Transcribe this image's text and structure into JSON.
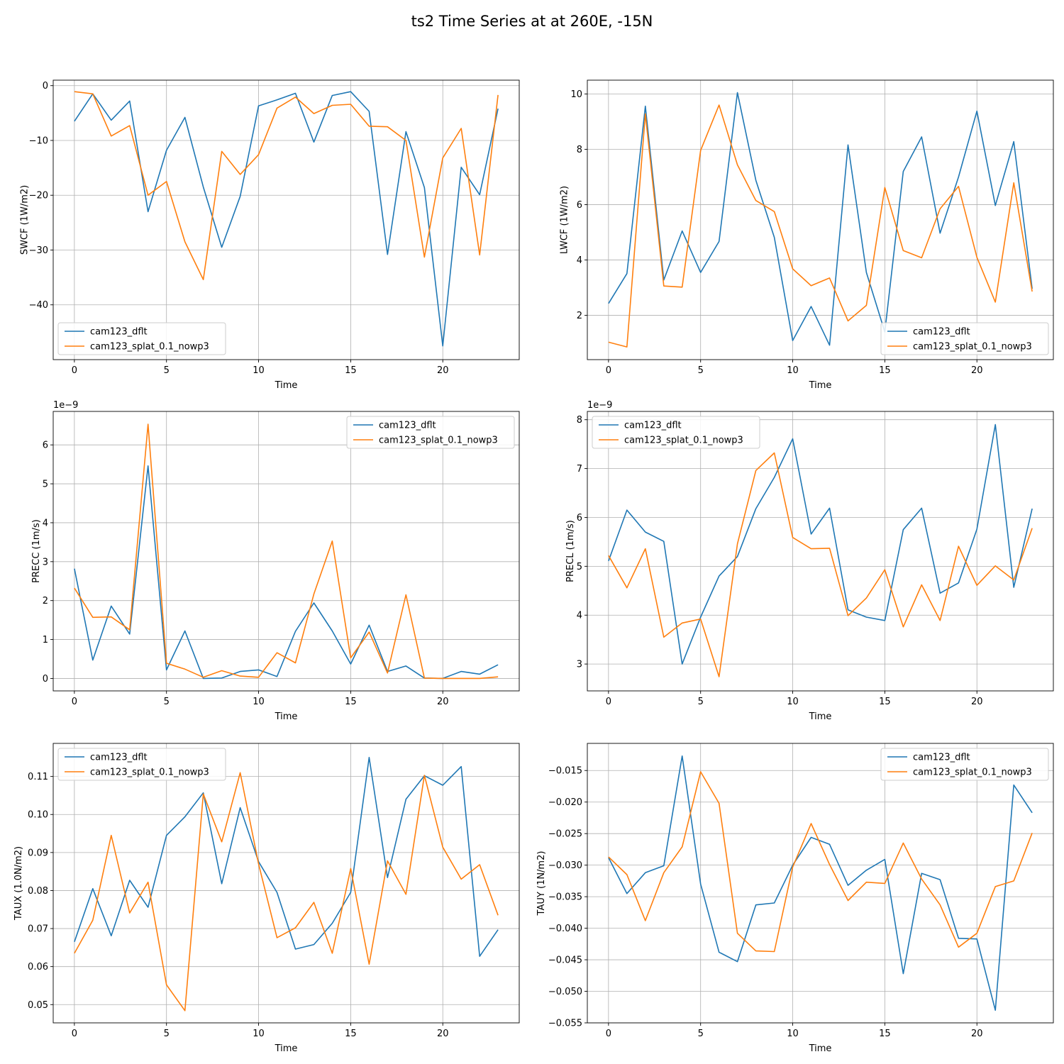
{
  "figure": {
    "title": "ts2 Time Series at at 260E, -15N"
  },
  "chart_data": [
    {
      "type": "line",
      "xlabel": "Time",
      "ylabel": "SWCF (1W/m2)",
      "offset": "",
      "xlim": [
        -1.15,
        24.15
      ],
      "ylim": [
        -50.0,
        1.0
      ],
      "xticks": [
        0,
        5,
        10,
        15,
        20
      ],
      "xtick_labels": [
        "0",
        "5",
        "10",
        "15",
        "20"
      ],
      "yticks": [
        -40,
        -30,
        -20,
        -10,
        0
      ],
      "ytick_labels": [
        "−40",
        "−30",
        "−20",
        "−10",
        "0"
      ],
      "grid": true,
      "legend": "lower left",
      "x": [
        0,
        1,
        2,
        3,
        4,
        5,
        6,
        7,
        8,
        9,
        10,
        11,
        12,
        13,
        14,
        15,
        16,
        17,
        18,
        19,
        20,
        21,
        22,
        23
      ],
      "series": [
        {
          "name": "cam123_dflt",
          "color": "#1f77b4",
          "values": [
            -6.5,
            -1.5,
            -6.3,
            -2.8,
            -23.0,
            -11.8,
            -5.8,
            -18.5,
            -29.5,
            -20.2,
            -3.7,
            -2.6,
            -1.4,
            -10.3,
            -1.8,
            -1.1,
            -4.7,
            -30.8,
            -8.4,
            -18.6,
            -47.5,
            -14.9,
            -19.9,
            -4.2
          ]
        },
        {
          "name": "cam123_splat_0.1_nowp3",
          "color": "#ff7f0e",
          "values": [
            -1.1,
            -1.5,
            -9.2,
            -7.3,
            -20.0,
            -17.5,
            -28.5,
            -35.4,
            -12.0,
            -16.2,
            -12.6,
            -4.1,
            -2.1,
            -5.1,
            -3.6,
            -3.4,
            -7.4,
            -7.5,
            -10.0,
            -31.3,
            -13.2,
            -7.8,
            -30.9,
            -1.7
          ]
        }
      ]
    },
    {
      "type": "line",
      "xlabel": "Time",
      "ylabel": "LWCF (1W/m2)",
      "offset": "",
      "xlim": [
        -1.15,
        24.15
      ],
      "ylim": [
        0.4,
        10.5
      ],
      "xticks": [
        0,
        5,
        10,
        15,
        20
      ],
      "xtick_labels": [
        "0",
        "5",
        "10",
        "15",
        "20"
      ],
      "yticks": [
        2,
        4,
        6,
        8,
        10
      ],
      "ytick_labels": [
        "2",
        "4",
        "6",
        "8",
        "10"
      ],
      "grid": true,
      "legend": "lower right",
      "x": [
        0,
        1,
        2,
        3,
        4,
        5,
        6,
        7,
        8,
        9,
        10,
        11,
        12,
        13,
        14,
        15,
        16,
        17,
        18,
        19,
        20,
        21,
        22,
        23
      ],
      "series": [
        {
          "name": "cam123_dflt",
          "color": "#1f77b4",
          "values": [
            2.43,
            3.51,
            9.56,
            3.28,
            5.05,
            3.55,
            4.67,
            10.05,
            6.88,
            4.82,
            1.09,
            2.32,
            0.92,
            8.16,
            3.55,
            1.4,
            7.2,
            8.45,
            4.97,
            7.0,
            9.38,
            5.97,
            8.28,
            2.96
          ]
        },
        {
          "name": "cam123_splat_0.1_nowp3",
          "color": "#ff7f0e",
          "values": [
            1.03,
            0.86,
            9.28,
            3.06,
            3.02,
            7.96,
            9.6,
            7.44,
            6.15,
            5.75,
            3.68,
            3.07,
            3.35,
            1.8,
            2.36,
            6.62,
            4.34,
            4.08,
            5.85,
            6.66,
            4.1,
            2.48,
            6.79,
            2.86
          ]
        }
      ]
    },
    {
      "type": "line",
      "xlabel": "Time",
      "ylabel": "PRECC (1m/s)",
      "offset": "1e−9",
      "xlim": [
        -1.15,
        24.15
      ],
      "ylim": [
        -0.32,
        6.86
      ],
      "xticks": [
        0,
        5,
        10,
        15,
        20
      ],
      "xtick_labels": [
        "0",
        "5",
        "10",
        "15",
        "20"
      ],
      "yticks": [
        0,
        1,
        2,
        3,
        4,
        5,
        6
      ],
      "ytick_labels": [
        "0",
        "1",
        "2",
        "3",
        "4",
        "5",
        "6"
      ],
      "grid": true,
      "legend": "upper right",
      "x": [
        0,
        1,
        2,
        3,
        4,
        5,
        6,
        7,
        8,
        9,
        10,
        11,
        12,
        13,
        14,
        15,
        16,
        17,
        18,
        19,
        20,
        21,
        22,
        23
      ],
      "series": [
        {
          "name": "cam123_dflt",
          "color": "#1f77b4",
          "values": [
            2.82,
            0.47,
            1.86,
            1.14,
            5.46,
            0.22,
            1.22,
            0.0,
            0.01,
            0.18,
            0.22,
            0.05,
            1.21,
            1.94,
            1.22,
            0.37,
            1.37,
            0.18,
            0.32,
            0.01,
            0.0,
            0.18,
            0.11,
            0.35
          ]
        },
        {
          "name": "cam123_splat_0.1_nowp3",
          "color": "#ff7f0e",
          "values": [
            2.32,
            1.57,
            1.58,
            1.25,
            6.53,
            0.39,
            0.24,
            0.03,
            0.2,
            0.06,
            0.03,
            0.66,
            0.4,
            2.17,
            3.53,
            0.53,
            1.19,
            0.14,
            2.15,
            0.01,
            0.0,
            0.0,
            0.0,
            0.04
          ]
        }
      ]
    },
    {
      "type": "line",
      "xlabel": "Time",
      "ylabel": "PRECL (1m/s)",
      "offset": "1e−9",
      "xlim": [
        -1.15,
        24.15
      ],
      "ylim": [
        2.45,
        8.17
      ],
      "xticks": [
        0,
        5,
        10,
        15,
        20
      ],
      "xtick_labels": [
        "0",
        "5",
        "10",
        "15",
        "20"
      ],
      "yticks": [
        3,
        4,
        5,
        6,
        7,
        8
      ],
      "ytick_labels": [
        "3",
        "4",
        "5",
        "6",
        "7",
        "8"
      ],
      "grid": true,
      "legend": "upper left",
      "x": [
        0,
        1,
        2,
        3,
        4,
        5,
        6,
        7,
        8,
        9,
        10,
        11,
        12,
        13,
        14,
        15,
        16,
        17,
        18,
        19,
        20,
        21,
        22,
        23
      ],
      "series": [
        {
          "name": "cam123_dflt",
          "color": "#1f77b4",
          "values": [
            5.11,
            6.15,
            5.7,
            5.51,
            3.0,
            3.96,
            4.8,
            5.2,
            6.18,
            6.82,
            7.61,
            5.66,
            6.19,
            4.11,
            3.96,
            3.89,
            5.75,
            6.19,
            4.45,
            4.66,
            5.76,
            7.9,
            4.57,
            6.18
          ]
        },
        {
          "name": "cam123_splat_0.1_nowp3",
          "color": "#ff7f0e",
          "values": [
            5.22,
            4.56,
            5.36,
            3.55,
            3.84,
            3.92,
            2.74,
            5.46,
            6.96,
            7.32,
            5.59,
            5.36,
            5.37,
            3.99,
            4.35,
            4.93,
            3.76,
            4.62,
            3.89,
            5.41,
            4.61,
            5.01,
            4.72,
            5.78
          ]
        }
      ]
    },
    {
      "type": "line",
      "xlabel": "Time",
      "ylabel": "TAUX (1.0N/m2)",
      "offset": "",
      "xlim": [
        -1.15,
        24.15
      ],
      "ylim": [
        0.0452,
        0.1187
      ],
      "xticks": [
        0,
        5,
        10,
        15,
        20
      ],
      "xtick_labels": [
        "0",
        "5",
        "10",
        "15",
        "20"
      ],
      "yticks": [
        0.05,
        0.06,
        0.07,
        0.08,
        0.09,
        0.1,
        0.11
      ],
      "ytick_labels": [
        "0.05",
        "0.06",
        "0.07",
        "0.08",
        "0.09",
        "0.10",
        "0.11"
      ],
      "grid": true,
      "legend": "upper left",
      "x": [
        0,
        1,
        2,
        3,
        4,
        5,
        6,
        7,
        8,
        9,
        10,
        11,
        12,
        13,
        14,
        15,
        16,
        17,
        18,
        19,
        20,
        21,
        22,
        23
      ],
      "series": [
        {
          "name": "cam123_dflt",
          "color": "#1f77b4",
          "values": [
            0.0665,
            0.0805,
            0.0681,
            0.0827,
            0.0756,
            0.0945,
            0.0994,
            0.1057,
            0.0818,
            0.1018,
            0.0876,
            0.0795,
            0.0646,
            0.0658,
            0.0714,
            0.0795,
            0.115,
            0.0834,
            0.104,
            0.1102,
            0.1077,
            0.1126,
            0.0627,
            0.0697
          ]
        },
        {
          "name": "cam123_splat_0.1_nowp3",
          "color": "#ff7f0e",
          "values": [
            0.0635,
            0.0722,
            0.0945,
            0.0741,
            0.0822,
            0.0552,
            0.0484,
            0.1054,
            0.0928,
            0.111,
            0.087,
            0.0676,
            0.0702,
            0.0769,
            0.0635,
            0.0858,
            0.0606,
            0.0878,
            0.079,
            0.1103,
            0.0914,
            0.083,
            0.0868,
            0.0735
          ]
        }
      ]
    },
    {
      "type": "line",
      "xlabel": "Time",
      "ylabel": "TAUY (1N/m2)",
      "offset": "",
      "xlim": [
        -1.15,
        24.15
      ],
      "ylim": [
        -0.055,
        -0.0107
      ],
      "xticks": [
        0,
        5,
        10,
        15,
        20
      ],
      "xtick_labels": [
        "0",
        "5",
        "10",
        "15",
        "20"
      ],
      "yticks": [
        -0.055,
        -0.05,
        -0.045,
        -0.04,
        -0.035,
        -0.03,
        -0.025,
        -0.02,
        -0.015
      ],
      "ytick_labels": [
        "−0.055",
        "−0.050",
        "−0.045",
        "−0.040",
        "−0.035",
        "−0.030",
        "−0.025",
        "−0.020",
        "−0.015"
      ],
      "grid": true,
      "legend": "upper right",
      "x": [
        0,
        1,
        2,
        3,
        4,
        5,
        6,
        7,
        8,
        9,
        10,
        11,
        12,
        13,
        14,
        15,
        16,
        17,
        18,
        19,
        20,
        21,
        22,
        23
      ],
      "series": [
        {
          "name": "cam123_dflt",
          "color": "#1f77b4",
          "values": [
            -0.0288,
            -0.0345,
            -0.0312,
            -0.0301,
            -0.0127,
            -0.033,
            -0.0438,
            -0.0453,
            -0.0363,
            -0.036,
            -0.03,
            -0.0256,
            -0.0267,
            -0.0332,
            -0.0308,
            -0.0291,
            -0.0472,
            -0.0313,
            -0.0323,
            -0.0416,
            -0.0417,
            -0.053,
            -0.0173,
            -0.0217
          ]
        },
        {
          "name": "cam123_splat_0.1_nowp3",
          "color": "#ff7f0e",
          "values": [
            -0.0287,
            -0.0315,
            -0.0388,
            -0.0312,
            -0.0271,
            -0.0152,
            -0.0202,
            -0.0408,
            -0.0436,
            -0.0437,
            -0.0303,
            -0.0234,
            -0.0299,
            -0.0356,
            -0.0327,
            -0.0329,
            -0.0265,
            -0.0322,
            -0.0363,
            -0.043,
            -0.0408,
            -0.0334,
            -0.0325,
            -0.0249
          ]
        }
      ]
    }
  ]
}
